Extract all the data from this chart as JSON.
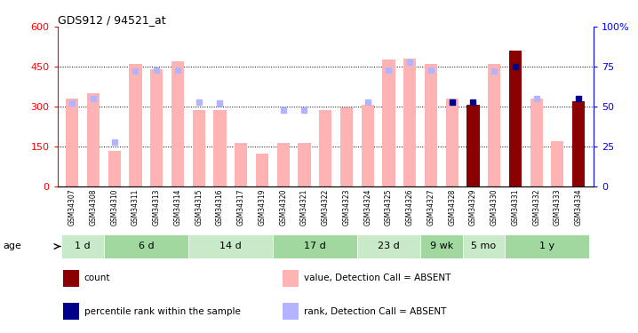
{
  "title": "GDS912 / 94521_at",
  "samples": [
    "GSM34307",
    "GSM34308",
    "GSM34310",
    "GSM34311",
    "GSM34313",
    "GSM34314",
    "GSM34315",
    "GSM34316",
    "GSM34317",
    "GSM34319",
    "GSM34320",
    "GSM34321",
    "GSM34322",
    "GSM34323",
    "GSM34324",
    "GSM34325",
    "GSM34326",
    "GSM34327",
    "GSM34328",
    "GSM34329",
    "GSM34330",
    "GSM34331",
    "GSM34332",
    "GSM34333",
    "GSM34334"
  ],
  "value_absent": [
    330,
    350,
    135,
    460,
    440,
    470,
    285,
    285,
    165,
    125,
    165,
    165,
    285,
    295,
    305,
    475,
    480,
    460,
    330,
    305,
    460,
    null,
    330,
    170,
    320
  ],
  "rank_absent": [
    52,
    55,
    28,
    72,
    73,
    73,
    53,
    52,
    null,
    null,
    48,
    48,
    null,
    null,
    53,
    73,
    78,
    73,
    null,
    null,
    72,
    null,
    55,
    null,
    null
  ],
  "count_value": [
    null,
    null,
    null,
    null,
    null,
    null,
    null,
    null,
    null,
    null,
    null,
    null,
    null,
    null,
    null,
    null,
    null,
    null,
    null,
    305,
    null,
    510,
    null,
    null,
    320
  ],
  "percentile_rank": [
    null,
    null,
    null,
    null,
    null,
    null,
    null,
    null,
    null,
    null,
    null,
    null,
    null,
    null,
    null,
    null,
    null,
    null,
    53,
    53,
    null,
    75,
    null,
    null,
    55
  ],
  "age_groups": [
    {
      "label": "1 d",
      "samples": [
        "GSM34307",
        "GSM34308"
      ]
    },
    {
      "label": "6 d",
      "samples": [
        "GSM34310",
        "GSM34311",
        "GSM34313",
        "GSM34314"
      ]
    },
    {
      "label": "14 d",
      "samples": [
        "GSM34315",
        "GSM34316",
        "GSM34317",
        "GSM34319"
      ]
    },
    {
      "label": "17 d",
      "samples": [
        "GSM34320",
        "GSM34321",
        "GSM34322",
        "GSM34323"
      ]
    },
    {
      "label": "23 d",
      "samples": [
        "GSM34324",
        "GSM34325",
        "GSM34326"
      ]
    },
    {
      "label": "9 wk",
      "samples": [
        "GSM34327",
        "GSM34328"
      ]
    },
    {
      "label": "5 mo",
      "samples": [
        "GSM34329",
        "GSM34330"
      ]
    },
    {
      "label": "1 y",
      "samples": [
        "GSM34331",
        "GSM34332",
        "GSM34333",
        "GSM34334"
      ]
    }
  ],
  "ylim_left": [
    0,
    600
  ],
  "ylim_right": [
    0,
    100
  ],
  "yticks_left": [
    0,
    150,
    300,
    450,
    600
  ],
  "yticks_right": [
    0,
    25,
    50,
    75,
    100
  ],
  "color_absent_bar": "#ffb3b3",
  "color_absent_rank": "#b3b3ff",
  "color_count": "#8b0000",
  "color_percentile": "#00008b",
  "bar_width": 0.6,
  "age_colors": [
    "#c8eac8",
    "#a0d8a0"
  ],
  "grid_lines": [
    150,
    300,
    450
  ],
  "legend_items": [
    {
      "label": "count",
      "color": "#8b0000"
    },
    {
      "label": "percentile rank within the sample",
      "color": "#00008b"
    },
    {
      "label": "value, Detection Call = ABSENT",
      "color": "#ffb3b3"
    },
    {
      "label": "rank, Detection Call = ABSENT",
      "color": "#b3b3ff"
    }
  ]
}
